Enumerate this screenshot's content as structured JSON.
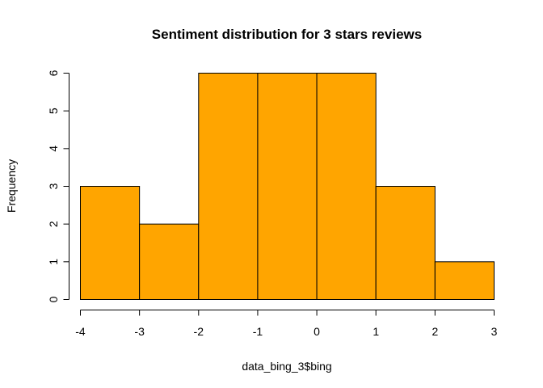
{
  "chart_data": {
    "type": "bar",
    "title": "Sentiment distribution for 3 stars reviews",
    "xlabel": "data_bing_3$bing",
    "ylabel": "Frequency",
    "bins": [
      {
        "x0": -4,
        "x1": -3,
        "count": 3
      },
      {
        "x0": -3,
        "x1": -2,
        "count": 2
      },
      {
        "x0": -2,
        "x1": -1,
        "count": 6
      },
      {
        "x0": -1,
        "x1": 0,
        "count": 6
      },
      {
        "x0": 0,
        "x1": 1,
        "count": 6
      },
      {
        "x0": 1,
        "x1": 2,
        "count": 3
      },
      {
        "x0": 2,
        "x1": 3,
        "count": 1
      }
    ],
    "xlim": [
      -4,
      3
    ],
    "ylim": [
      0,
      6
    ],
    "x_ticks": [
      "-4",
      "-3",
      "-2",
      "-1",
      "0",
      "1",
      "2",
      "3"
    ],
    "y_ticks": [
      "0",
      "1",
      "2",
      "3",
      "4",
      "5",
      "6"
    ],
    "bar_color": "#FFA500",
    "bar_edge_color": "#000000",
    "grid": false
  }
}
